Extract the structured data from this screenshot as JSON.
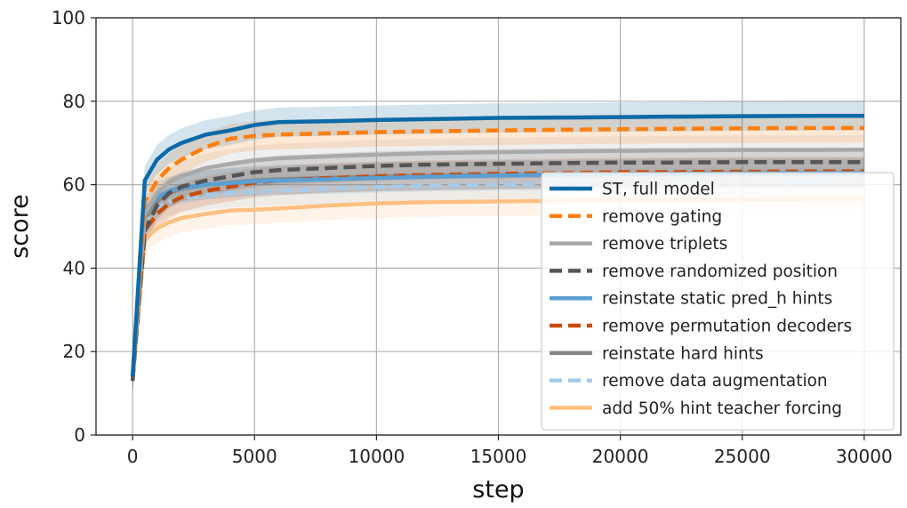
{
  "chart_data": {
    "type": "line",
    "title": "",
    "xlabel": "step",
    "ylabel": "score",
    "xlim": [
      -1500,
      31500
    ],
    "ylim": [
      0,
      100
    ],
    "xticks": [
      0,
      5000,
      10000,
      15000,
      20000,
      25000,
      30000
    ],
    "xtick_labels": [
      "0",
      "5000",
      "10000",
      "15000",
      "20000",
      "25000",
      "30000"
    ],
    "yticks": [
      0,
      20,
      40,
      60,
      80,
      100
    ],
    "ytick_labels": [
      "0",
      "20",
      "40",
      "60",
      "80",
      "100"
    ],
    "grid": true,
    "legend_position": "lower-right",
    "series": [
      {
        "name": "ST, full model",
        "color": "#0b6aa8",
        "dash": "solid",
        "band": 3.5,
        "x": [
          0,
          500,
          1000,
          1500,
          2000,
          3000,
          4000,
          5000,
          6000,
          8000,
          10000,
          12000,
          15000,
          18000,
          20000,
          22000,
          25000,
          28000,
          30000
        ],
        "y": [
          14,
          61,
          66,
          68.5,
          70,
          72,
          73,
          74.3,
          75,
          75.2,
          75.5,
          75.7,
          76,
          76.1,
          76.2,
          76.3,
          76.4,
          76.5,
          76.5
        ]
      },
      {
        "name": "remove gating",
        "color": "#ff7f0e",
        "dash": "dashed",
        "band": 3.5,
        "x": [
          0,
          500,
          1000,
          1500,
          2000,
          3000,
          4000,
          5000,
          6000,
          8000,
          10000,
          12000,
          15000,
          18000,
          20000,
          22000,
          25000,
          28000,
          30000
        ],
        "y": [
          14,
          56,
          61,
          64,
          66,
          69,
          71,
          71.7,
          72,
          72.3,
          72.6,
          72.8,
          73,
          73.2,
          73.3,
          73.4,
          73.5,
          73.6,
          73.6
        ]
      },
      {
        "name": "remove triplets",
        "color": "#a9a9a9",
        "dash": "solid",
        "band": 3.5,
        "x": [
          0,
          500,
          1000,
          1500,
          2000,
          3000,
          4000,
          5000,
          6000,
          8000,
          10000,
          12000,
          15000,
          18000,
          20000,
          22000,
          25000,
          28000,
          30000
        ],
        "y": [
          14,
          53,
          58,
          60.5,
          62,
          64,
          65,
          65.8,
          66.3,
          66.8,
          67.2,
          67.5,
          67.8,
          68,
          68.1,
          68.2,
          68.3,
          68.3,
          68.4
        ]
      },
      {
        "name": "remove randomized position",
        "color": "#555555",
        "dash": "dashed",
        "band": 3.5,
        "x": [
          0,
          500,
          1000,
          1500,
          2000,
          3000,
          4000,
          5000,
          6000,
          8000,
          10000,
          12000,
          15000,
          18000,
          20000,
          22000,
          25000,
          28000,
          30000
        ],
        "y": [
          13,
          49,
          55,
          58,
          59.5,
          61,
          62,
          63,
          63.5,
          64,
          64.5,
          64.8,
          65,
          65.2,
          65.3,
          65.3,
          65.4,
          65.4,
          65.4
        ]
      },
      {
        "name": "reinstate static pred_h hints",
        "color": "#5a9fd4",
        "dash": "solid",
        "band": 3.5,
        "x": [
          0,
          500,
          1000,
          1500,
          2000,
          3000,
          4000,
          5000,
          6000,
          8000,
          10000,
          12000,
          15000,
          18000,
          20000,
          22000,
          25000,
          28000,
          30000
        ],
        "y": [
          14,
          54,
          57,
          58.5,
          59.3,
          60,
          60.4,
          60.8,
          61,
          61.3,
          61.6,
          61.9,
          62.2,
          62.4,
          62.5,
          62.6,
          62.7,
          62.8,
          62.8
        ]
      },
      {
        "name": "remove permutation decoders",
        "color": "#c84c09",
        "dash": "dashed",
        "band": 3.5,
        "x": [
          0,
          500,
          1000,
          1500,
          2000,
          3000,
          4000,
          5000,
          6000,
          8000,
          10000,
          12000,
          15000,
          18000,
          20000,
          22000,
          25000,
          28000,
          30000
        ],
        "y": [
          14,
          49,
          53,
          55.5,
          57,
          58.5,
          59.5,
          60.5,
          61,
          61.6,
          62,
          62.3,
          62.6,
          62.8,
          63,
          63,
          63.1,
          63.2,
          63.2
        ]
      },
      {
        "name": "reinstate hard hints",
        "color": "#888888",
        "dash": "solid",
        "band": 3.5,
        "x": [
          0,
          500,
          1000,
          1500,
          2000,
          3000,
          4000,
          5000,
          6000,
          8000,
          10000,
          12000,
          15000,
          18000,
          20000,
          22000,
          25000,
          28000,
          30000
        ],
        "y": [
          13,
          52,
          56,
          58,
          59,
          60,
          60.5,
          61,
          61.3,
          61.6,
          61.9,
          62.1,
          62.3,
          62.5,
          62.6,
          62.7,
          62.8,
          62.8,
          62.8
        ]
      },
      {
        "name": "remove data augmentation",
        "color": "#a6cbe8",
        "dash": "dashed",
        "band": 3.5,
        "x": [
          0,
          500,
          1000,
          1500,
          2000,
          3000,
          4000,
          5000,
          6000,
          8000,
          10000,
          12000,
          15000,
          18000,
          20000,
          22000,
          25000,
          28000,
          30000
        ],
        "y": [
          14,
          51,
          54.5,
          56,
          56.8,
          57.5,
          58,
          58.3,
          58.6,
          59,
          59.4,
          59.7,
          60,
          60.2,
          60.3,
          60.4,
          60.5,
          60.6,
          60.6
        ]
      },
      {
        "name": "add 50% hint teacher forcing",
        "color": "#fdbf82",
        "dash": "solid",
        "band": 3.5,
        "x": [
          0,
          500,
          1000,
          1500,
          2000,
          3000,
          4000,
          5000,
          6000,
          8000,
          10000,
          12000,
          15000,
          18000,
          20000,
          22000,
          25000,
          28000,
          30000
        ],
        "y": [
          14,
          47,
          49.5,
          51,
          52,
          53,
          53.8,
          54,
          54.3,
          55,
          55.5,
          55.8,
          56,
          56.2,
          56.3,
          56.4,
          56.5,
          56.6,
          56.6
        ]
      }
    ]
  }
}
